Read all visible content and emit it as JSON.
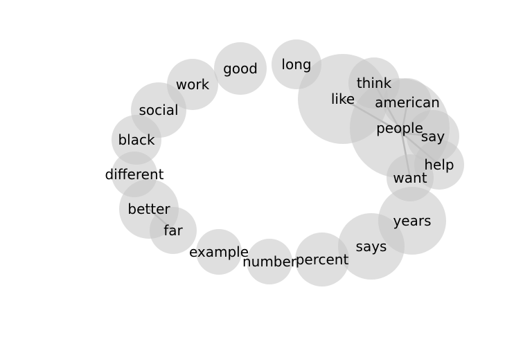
{
  "graph": {
    "nodes": [
      {
        "id": "like",
        "label": "like"
      },
      {
        "id": "people",
        "label": "people"
      },
      {
        "id": "think",
        "label": "think"
      },
      {
        "id": "american",
        "label": "american"
      },
      {
        "id": "say",
        "label": "say"
      },
      {
        "id": "help",
        "label": "help"
      },
      {
        "id": "want",
        "label": "want"
      },
      {
        "id": "years",
        "label": "years"
      },
      {
        "id": "says",
        "label": "says"
      },
      {
        "id": "percent",
        "label": "percent"
      },
      {
        "id": "number",
        "label": "number"
      },
      {
        "id": "example",
        "label": "example"
      },
      {
        "id": "far",
        "label": "far"
      },
      {
        "id": "better",
        "label": "better"
      },
      {
        "id": "different",
        "label": "different"
      },
      {
        "id": "black",
        "label": "black"
      },
      {
        "id": "social",
        "label": "social"
      },
      {
        "id": "work",
        "label": "work"
      },
      {
        "id": "good",
        "label": "good"
      },
      {
        "id": "long",
        "label": "long"
      }
    ],
    "edges": [
      {
        "source": "people",
        "target": "like"
      },
      {
        "source": "people",
        "target": "think"
      },
      {
        "source": "people",
        "target": "american"
      },
      {
        "source": "people",
        "target": "say"
      },
      {
        "source": "people",
        "target": "help"
      },
      {
        "source": "people",
        "target": "want"
      },
      {
        "source": "better",
        "target": "far"
      }
    ]
  }
}
